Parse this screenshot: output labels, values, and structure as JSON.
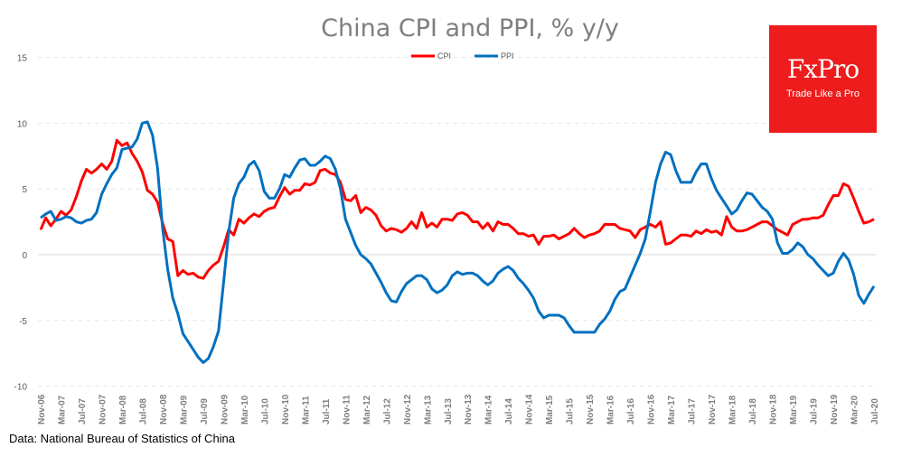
{
  "chart_data": {
    "type": "line",
    "title": "China CPI and PPI, % y/y",
    "xlabel": "",
    "ylabel": "",
    "ylim": [
      -10,
      15
    ],
    "yticks": [
      15,
      10,
      5,
      0,
      -5,
      -10
    ],
    "grid": true,
    "legend": "top-center",
    "x_start": "Nov-06",
    "x_end": "Jul-20",
    "x_frequency": "monthly",
    "xtick_labels": [
      "Nov-06",
      "Mar-07",
      "Jul-07",
      "Nov-07",
      "Mar-08",
      "Jul-08",
      "Nov-08",
      "Mar-09",
      "Jul-09",
      "Nov-09",
      "Mar-10",
      "Jul-10",
      "Nov-10",
      "Mar-11",
      "Jul-11",
      "Nov-11",
      "Mar-12",
      "Jul-12",
      "Nov-12",
      "Mar-13",
      "Jul-13",
      "Nov-13",
      "Mar-14",
      "Jul-14",
      "Nov-14",
      "Mar-15",
      "Jul-15",
      "Nov-15",
      "Mar-16",
      "Jul-16",
      "Nov-16",
      "Mar-17",
      "Jul-17",
      "Nov-17",
      "Mar-18",
      "Jul-18",
      "Nov-18",
      "Mar-19",
      "Jul-19",
      "Nov-19",
      "Mar-20",
      "Jul-20"
    ],
    "series": [
      {
        "name": "CPI",
        "color": "#ff0000",
        "values": [
          1.9,
          2.8,
          2.2,
          2.7,
          3.3,
          3.0,
          3.4,
          4.4,
          5.6,
          6.5,
          6.2,
          6.5,
          6.9,
          6.5,
          7.1,
          8.7,
          8.3,
          8.5,
          7.7,
          7.1,
          6.3,
          4.9,
          4.6,
          4.0,
          2.4,
          1.2,
          1.0,
          -1.6,
          -1.2,
          -1.5,
          -1.4,
          -1.7,
          -1.8,
          -1.2,
          -0.8,
          -0.5,
          0.6,
          1.9,
          1.5,
          2.7,
          2.4,
          2.8,
          3.1,
          2.9,
          3.3,
          3.5,
          3.6,
          4.4,
          5.1,
          4.6,
          4.9,
          4.9,
          5.4,
          5.3,
          5.5,
          6.4,
          6.5,
          6.2,
          6.1,
          5.5,
          4.2,
          4.1,
          4.5,
          3.2,
          3.6,
          3.4,
          3.0,
          2.2,
          1.8,
          2.0,
          1.9,
          1.7,
          2.0,
          2.5,
          2.0,
          3.2,
          2.1,
          2.4,
          2.1,
          2.7,
          2.7,
          2.6,
          3.1,
          3.2,
          3.0,
          2.5,
          2.5,
          2.0,
          2.4,
          1.8,
          2.5,
          2.3,
          2.3,
          2.0,
          1.6,
          1.6,
          1.4,
          1.5,
          0.8,
          1.4,
          1.4,
          1.5,
          1.2,
          1.4,
          1.6,
          2.0,
          1.6,
          1.3,
          1.5,
          1.6,
          1.8,
          2.3,
          2.3,
          2.3,
          2.0,
          1.9,
          1.8,
          1.3,
          1.9,
          2.1,
          2.3,
          2.1,
          2.5,
          0.8,
          0.9,
          1.2,
          1.5,
          1.5,
          1.4,
          1.8,
          1.6,
          1.9,
          1.7,
          1.8,
          1.5,
          2.9,
          2.1,
          1.8,
          1.8,
          1.9,
          2.1,
          2.3,
          2.5,
          2.5,
          2.2,
          1.9,
          1.7,
          1.5,
          2.3,
          2.5,
          2.7,
          2.7,
          2.8,
          2.8,
          3.0,
          3.8,
          4.5,
          4.5,
          5.4,
          5.2,
          4.3,
          3.3,
          2.4,
          2.5,
          2.7
        ]
      },
      {
        "name": "PPI",
        "color": "#0070c0",
        "values": [
          2.8,
          3.1,
          3.3,
          2.6,
          2.7,
          2.9,
          2.8,
          2.5,
          2.4,
          2.6,
          2.7,
          3.2,
          4.6,
          5.4,
          6.1,
          6.6,
          8.0,
          8.1,
          8.2,
          8.8,
          10.0,
          10.1,
          9.1,
          6.6,
          2.0,
          -1.1,
          -3.3,
          -4.5,
          -6.0,
          -6.6,
          -7.2,
          -7.8,
          -8.2,
          -7.9,
          -7.0,
          -5.8,
          -2.1,
          1.7,
          4.3,
          5.4,
          5.9,
          6.8,
          7.1,
          6.4,
          4.8,
          4.3,
          4.3,
          5.0,
          6.1,
          5.9,
          6.6,
          7.2,
          7.3,
          6.8,
          6.8,
          7.1,
          7.5,
          7.3,
          6.5,
          5.0,
          2.7,
          1.7,
          0.7,
          0.0,
          -0.3,
          -0.7,
          -1.4,
          -2.1,
          -2.9,
          -3.5,
          -3.6,
          -2.8,
          -2.2,
          -1.9,
          -1.6,
          -1.6,
          -1.9,
          -2.6,
          -2.9,
          -2.7,
          -2.3,
          -1.6,
          -1.3,
          -1.5,
          -1.4,
          -1.4,
          -1.6,
          -2.0,
          -2.3,
          -2.0,
          -1.4,
          -1.1,
          -0.9,
          -1.2,
          -1.8,
          -2.2,
          -2.7,
          -3.3,
          -4.3,
          -4.8,
          -4.6,
          -4.6,
          -4.6,
          -4.8,
          -5.4,
          -5.9,
          -5.9,
          -5.9,
          -5.9,
          -5.9,
          -5.3,
          -4.9,
          -4.3,
          -3.4,
          -2.8,
          -2.6,
          -1.7,
          -0.8,
          0.1,
          1.2,
          3.3,
          5.5,
          6.9,
          7.8,
          7.6,
          6.4,
          5.5,
          5.5,
          5.5,
          6.3,
          6.9,
          6.9,
          5.8,
          4.9,
          4.3,
          3.7,
          3.1,
          3.4,
          4.1,
          4.7,
          4.6,
          4.1,
          3.6,
          3.3,
          2.7,
          0.9,
          0.1,
          0.1,
          0.4,
          0.9,
          0.6,
          0.0,
          -0.3,
          -0.8,
          -1.2,
          -1.6,
          -1.4,
          -0.5,
          0.1,
          -0.4,
          -1.5,
          -3.1,
          -3.7,
          -3.0,
          -2.4
        ]
      }
    ]
  },
  "logo": {
    "brand": "FxPro",
    "tagline": "Trade Like a Pro"
  },
  "source": "Data: National Bureau of Statistics of China"
}
